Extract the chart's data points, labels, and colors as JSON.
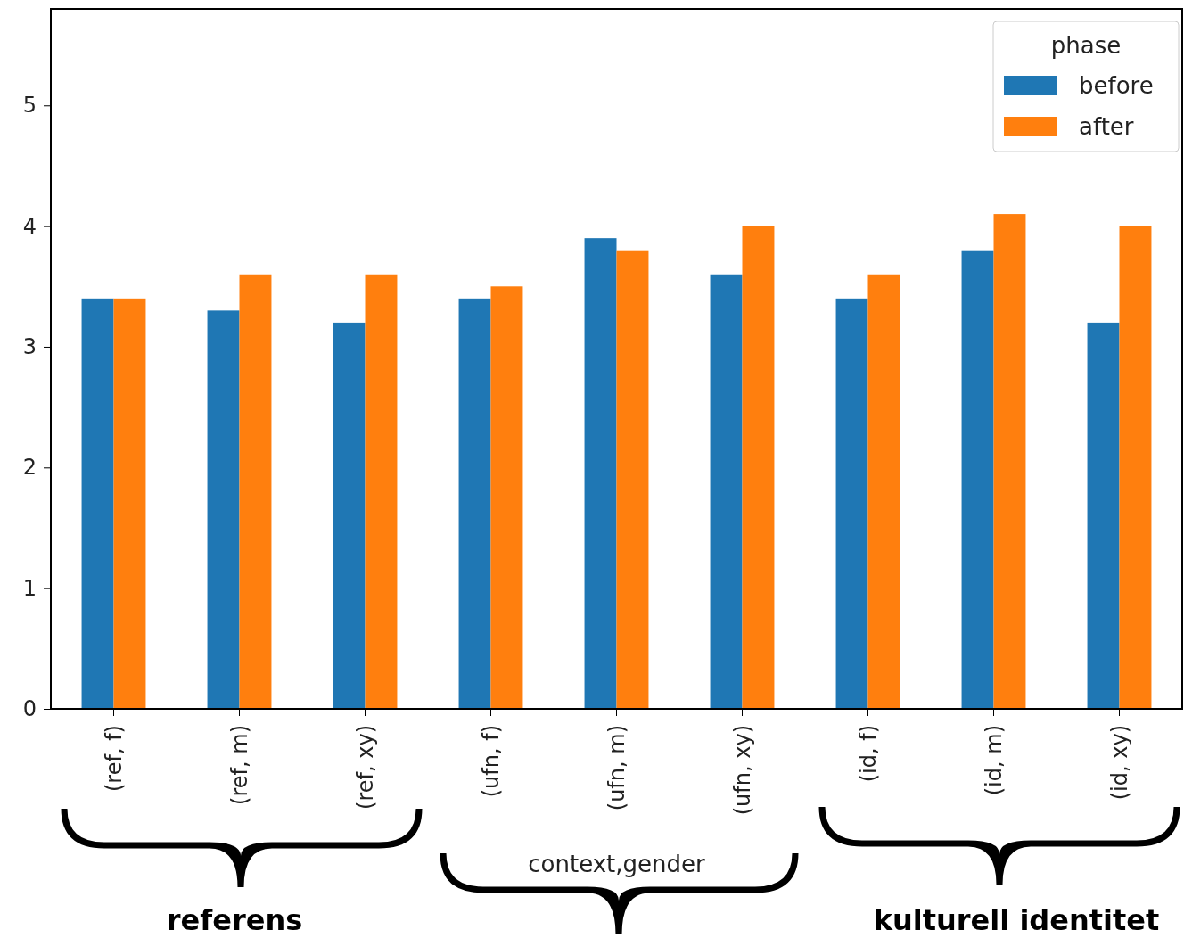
{
  "chart_data": {
    "type": "bar",
    "categories": [
      "(ref, f)",
      "(ref, m)",
      "(ref, xy)",
      "(ufn, f)",
      "(ufn, m)",
      "(ufn, xy)",
      "(id, f)",
      "(id, m)",
      "(id, xy)"
    ],
    "series": [
      {
        "name": "before",
        "color": "#1f77b4",
        "values": [
          3.4,
          3.3,
          3.2,
          3.4,
          3.9,
          3.6,
          3.4,
          3.8,
          3.2
        ]
      },
      {
        "name": "after",
        "color": "#ff7f0e",
        "values": [
          3.4,
          3.6,
          3.6,
          3.5,
          3.8,
          4.0,
          3.6,
          4.1,
          4.0
        ]
      }
    ],
    "xlabel": "context,gender",
    "legend_title": "phase",
    "legend": "top right",
    "ylim": [
      0,
      5.8
    ],
    "yticks": [
      0,
      1,
      2,
      3,
      4,
      5
    ],
    "grid": false,
    "annotations": [
      "referens",
      "kulturell identitet"
    ]
  }
}
